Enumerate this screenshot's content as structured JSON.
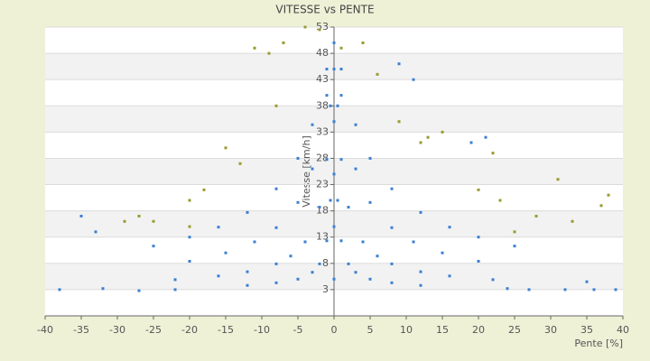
{
  "chart_data": {
    "type": "scatter",
    "title": "VITESSE vs PENTE",
    "x_label": "Pente [%]",
    "y_label": "Vitesse [km/h]",
    "xlim": [
      -40,
      40
    ],
    "xticks": [
      -40,
      -35,
      -30,
      -25,
      -20,
      -15,
      -10,
      -5,
      0,
      5,
      10,
      15,
      20,
      25,
      30,
      35,
      40
    ],
    "ylim": [
      -2,
      53
    ],
    "yticks": [
      3,
      8,
      13,
      18,
      23,
      28,
      33,
      38,
      43,
      48,
      53
    ],
    "grid": true,
    "series": [
      {
        "color": "#3a80d2",
        "x": [
          1,
          3,
          5,
          8,
          12,
          16,
          20,
          25,
          1,
          3,
          5,
          8,
          11,
          15,
          20,
          0.5,
          1,
          2,
          4,
          6,
          8,
          12,
          16,
          22,
          0.5,
          1,
          2,
          3,
          5,
          8,
          12,
          -1,
          -3,
          -5,
          -8,
          -12,
          -16,
          -20,
          -25,
          -1,
          -3,
          -5,
          -8,
          -11,
          -15,
          -20,
          -0.5,
          -1,
          -2,
          -4,
          -6,
          -8,
          -12,
          -16,
          -22,
          -0.5,
          -1,
          -2,
          -3,
          -5,
          -8,
          -12,
          -38,
          -32,
          -27,
          -22,
          27,
          32,
          36,
          39,
          24,
          0,
          0,
          0,
          0,
          0,
          0,
          -35,
          -33,
          9,
          11,
          19,
          21,
          35
        ],
        "values": [
          45,
          34.4,
          28,
          22.2,
          17.7,
          14.9,
          13,
          11.3,
          40,
          26,
          19.6,
          14.8,
          12.1,
          10,
          8.4,
          38,
          27.8,
          18.7,
          12.1,
          9.4,
          7.9,
          6.4,
          5.6,
          4.9,
          20,
          12.3,
          7.9,
          6.3,
          5,
          4.3,
          3.8,
          45,
          34.4,
          28,
          22.2,
          17.7,
          14.9,
          13,
          11.3,
          40,
          26,
          19.6,
          14.8,
          12.1,
          10,
          8.4,
          38,
          27.8,
          18.7,
          12.1,
          9.4,
          7.9,
          6.4,
          5.6,
          4.9,
          20,
          12.3,
          7.9,
          6.3,
          5,
          4.3,
          3.8,
          3,
          3.2,
          2.8,
          3,
          3,
          3,
          3,
          3,
          3.2,
          5,
          15,
          25,
          35,
          45,
          50,
          17,
          14,
          46,
          43,
          31,
          32,
          4.5
        ]
      },
      {
        "color": "#9a9a2e",
        "x": [
          -11,
          -9,
          -7,
          -4,
          -2,
          4,
          1,
          -13,
          -18,
          -20,
          -25,
          -29,
          -27,
          13,
          15,
          20,
          23,
          28,
          31,
          33,
          37,
          38,
          22,
          12,
          9,
          -15,
          -8,
          6,
          -20,
          25
        ],
        "values": [
          49,
          48,
          50,
          53,
          52.5,
          50,
          49,
          27,
          22,
          20,
          16,
          16,
          17,
          32,
          33,
          22,
          20,
          17,
          24,
          16,
          19,
          21,
          29,
          31,
          35,
          30,
          38,
          44,
          15,
          14
        ]
      }
    ]
  }
}
